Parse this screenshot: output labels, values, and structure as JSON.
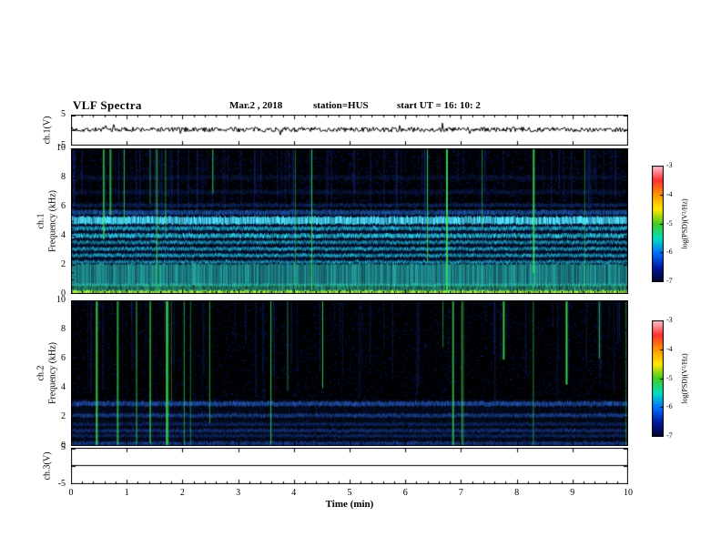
{
  "header": {
    "title": "VLF Spectra",
    "date": "Mar.2  , 2018",
    "station": "station=HUS",
    "start_ut": "start UT  =   16: 10: 2"
  },
  "xaxis": {
    "label": "Time (min)",
    "range": [
      0,
      10
    ],
    "ticks": [
      0,
      1,
      2,
      3,
      4,
      5,
      6,
      7,
      8,
      9,
      10
    ]
  },
  "colorbars": [
    {
      "label": "log(PSD)(V²/Hz)",
      "ticks": [
        -3,
        -4,
        -5,
        -6,
        -7
      ]
    },
    {
      "label": "log(PSD)(V²/Hz)",
      "ticks": [
        -3,
        -4,
        -5,
        -6,
        -7
      ]
    }
  ],
  "colormap": [
    "#ffc8d8",
    "#ff3030",
    "#ff9500",
    "#ffe800",
    "#40cc20",
    "#00e0c0",
    "#0070ff",
    "#0018a0",
    "#000428"
  ],
  "chart_data": [
    {
      "type": "line",
      "name": "ch1-voltage",
      "ylabel": "ch.1(V)",
      "ylim": [
        -5,
        5
      ],
      "yticks": [
        5,
        -5
      ],
      "signal": {
        "kind": "noise",
        "center": 0.2,
        "amplitude": 0.8,
        "spike_amplitude": 2.4
      }
    },
    {
      "type": "heatmap",
      "name": "ch1-spectrogram",
      "ylabel_channel": "ch.1",
      "ylabel": "Frequency (kHz)",
      "ylim": [
        0,
        10
      ],
      "yticks": [
        0,
        2,
        4,
        6,
        8,
        10
      ],
      "background": "#000000",
      "speckle": {
        "count": 15000,
        "color": "#1133cc"
      },
      "bands": [
        {
          "freq": 2.9,
          "width": 5.8,
          "color": "#0d2f7a",
          "intensity": 0.35
        },
        {
          "freq": 0.12,
          "width": 0.25,
          "color": "#baff44",
          "intensity": 0.95
        },
        {
          "freq": 0.45,
          "width": 0.5,
          "color": "#33cc88",
          "intensity": 0.6
        },
        {
          "freq": 1.3,
          "width": 1.5,
          "color": "#2fd9c9",
          "intensity": 0.65
        },
        {
          "freq": 2.2,
          "width": 0.2,
          "color": "#28c8e8",
          "intensity": 0.7
        },
        {
          "freq": 2.65,
          "width": 0.22,
          "color": "#28c8e8",
          "intensity": 0.75
        },
        {
          "freq": 3.1,
          "width": 0.22,
          "color": "#28c8e8",
          "intensity": 0.75
        },
        {
          "freq": 3.55,
          "width": 0.22,
          "color": "#28c8e8",
          "intensity": 0.7
        },
        {
          "freq": 4.0,
          "width": 0.28,
          "color": "#30d4f0",
          "intensity": 0.85
        },
        {
          "freq": 4.5,
          "width": 0.25,
          "color": "#28c8e8",
          "intensity": 0.8
        },
        {
          "freq": 5.05,
          "width": 0.5,
          "color": "#50e4ff",
          "intensity": 1.0
        },
        {
          "freq": 5.6,
          "width": 0.3,
          "color": "#2b7de0",
          "intensity": 0.55
        },
        {
          "freq": 6.1,
          "width": 0.25,
          "color": "#1c50b8",
          "intensity": 0.4
        },
        {
          "freq": 7.0,
          "width": 0.3,
          "color": "#16398f",
          "intensity": 0.3
        },
        {
          "freq": 8.0,
          "width": 0.3,
          "color": "#16398f",
          "intensity": 0.25
        }
      ],
      "streaks": {
        "bright_count": 15,
        "bright_color": "#3dee55",
        "faint_count": 90,
        "faint_color": "#2040c0"
      }
    },
    {
      "type": "heatmap",
      "name": "ch2-spectrogram",
      "ylabel_channel": "ch.2",
      "ylabel": "Frequency (kHz)",
      "ylim": [
        0,
        10
      ],
      "yticks": [
        0,
        2,
        4,
        6,
        8,
        10
      ],
      "background": "#000000",
      "speckle": {
        "count": 9000,
        "color": "#1133cc"
      },
      "bands": [
        {
          "freq": 1.6,
          "width": 3.2,
          "color": "#0a1f55",
          "intensity": 0.3
        },
        {
          "freq": 0.15,
          "width": 0.3,
          "color": "#2a62d8",
          "intensity": 0.55
        },
        {
          "freq": 0.7,
          "width": 0.2,
          "color": "#1f4ec0",
          "intensity": 0.4
        },
        {
          "freq": 1.05,
          "width": 0.22,
          "color": "#2456cc",
          "intensity": 0.5
        },
        {
          "freq": 1.5,
          "width": 0.2,
          "color": "#1f4ec0",
          "intensity": 0.4
        },
        {
          "freq": 2.1,
          "width": 0.25,
          "color": "#2a62d8",
          "intensity": 0.55
        },
        {
          "freq": 2.9,
          "width": 0.3,
          "color": "#2f6ee8",
          "intensity": 0.65
        }
      ],
      "streaks": {
        "bright_count": 22,
        "bright_color": "#3dee55",
        "faint_count": 60,
        "faint_color": "#2040c0"
      }
    },
    {
      "type": "line",
      "name": "ch3-voltage",
      "ylabel": "ch.3(V)",
      "ylim": [
        -5,
        5
      ],
      "yticks": [
        5,
        -5
      ],
      "signal": {
        "kind": "flat",
        "center": 0.25
      }
    }
  ]
}
